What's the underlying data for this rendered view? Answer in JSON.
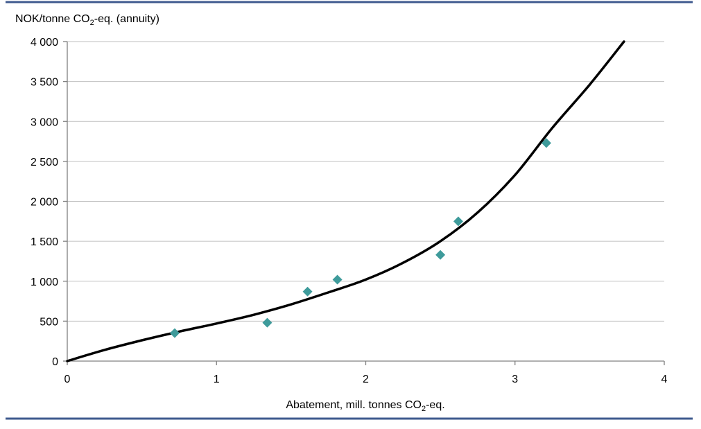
{
  "chart_data": {
    "type": "scatter",
    "ylabel_parts": [
      "NOK/tonne CO",
      "2",
      "-eq. (annuity)"
    ],
    "xlabel_parts": [
      "Abatement, mill. tonnes CO",
      "2",
      "-eq."
    ],
    "xlim": [
      0,
      4
    ],
    "ylim": [
      0,
      4000
    ],
    "x_ticks": [
      0,
      1,
      2,
      3,
      4
    ],
    "x_tick_labels": [
      "0",
      "1",
      "2",
      "3",
      "4"
    ],
    "y_ticks": [
      0,
      500,
      1000,
      1500,
      2000,
      2500,
      3000,
      3500,
      4000
    ],
    "y_tick_labels": [
      "0",
      "500",
      "1 000",
      "1 500",
      "2 000",
      "2 500",
      "3 000",
      "3 500",
      "4 000"
    ],
    "grid": "horizontal",
    "colors": {
      "points": "#3E9B9B",
      "curve": "#000000",
      "frame": "#3F5A8E",
      "grid": "#BFBFBF",
      "axis": "#808080"
    },
    "series": [
      {
        "type": "scatter",
        "marker": "diamond",
        "x": [
          0.72,
          1.34,
          1.61,
          1.81,
          2.5,
          2.62,
          3.21
        ],
        "y": [
          350,
          480,
          870,
          1020,
          1330,
          1750,
          2730
        ]
      },
      {
        "type": "line",
        "x": [
          0,
          0.25,
          0.5,
          0.75,
          1.0,
          1.25,
          1.5,
          1.75,
          2.0,
          2.25,
          2.5,
          2.75,
          3.0,
          3.25,
          3.5,
          3.73
        ],
        "y": [
          0,
          140,
          260,
          370,
          470,
          580,
          710,
          860,
          1020,
          1230,
          1500,
          1860,
          2330,
          2920,
          3460,
          4000
        ]
      }
    ]
  }
}
